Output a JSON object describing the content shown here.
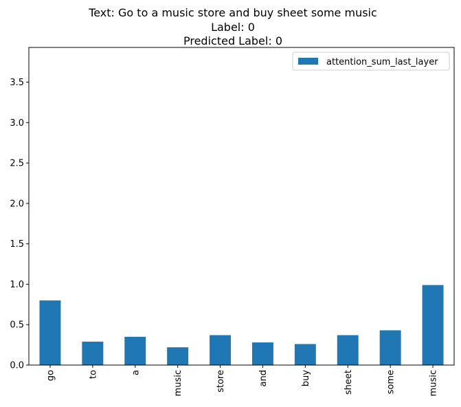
{
  "chart_data": {
    "type": "bar",
    "title_lines": [
      "Text: Go to a music store and buy sheet some music",
      "Label: 0",
      "Predicted Label: 0"
    ],
    "xlabel": "",
    "ylabel": "",
    "categories": [
      "go",
      "to",
      "a",
      "music",
      "store",
      "and",
      "buy",
      "sheet",
      "some",
      "music"
    ],
    "series": [
      {
        "name": "attention_sum_last_layer",
        "color": "#1f77b4",
        "values": [
          0.8,
          0.29,
          0.35,
          0.22,
          0.37,
          0.28,
          0.26,
          0.37,
          0.43,
          0.99
        ]
      }
    ],
    "ylim": [
      0,
      3.93
    ],
    "yticks": [
      "0.0",
      "0.5",
      "1.0",
      "1.5",
      "2.0",
      "2.5",
      "3.0",
      "3.5"
    ],
    "grid": false,
    "legend_position": "top-right"
  }
}
